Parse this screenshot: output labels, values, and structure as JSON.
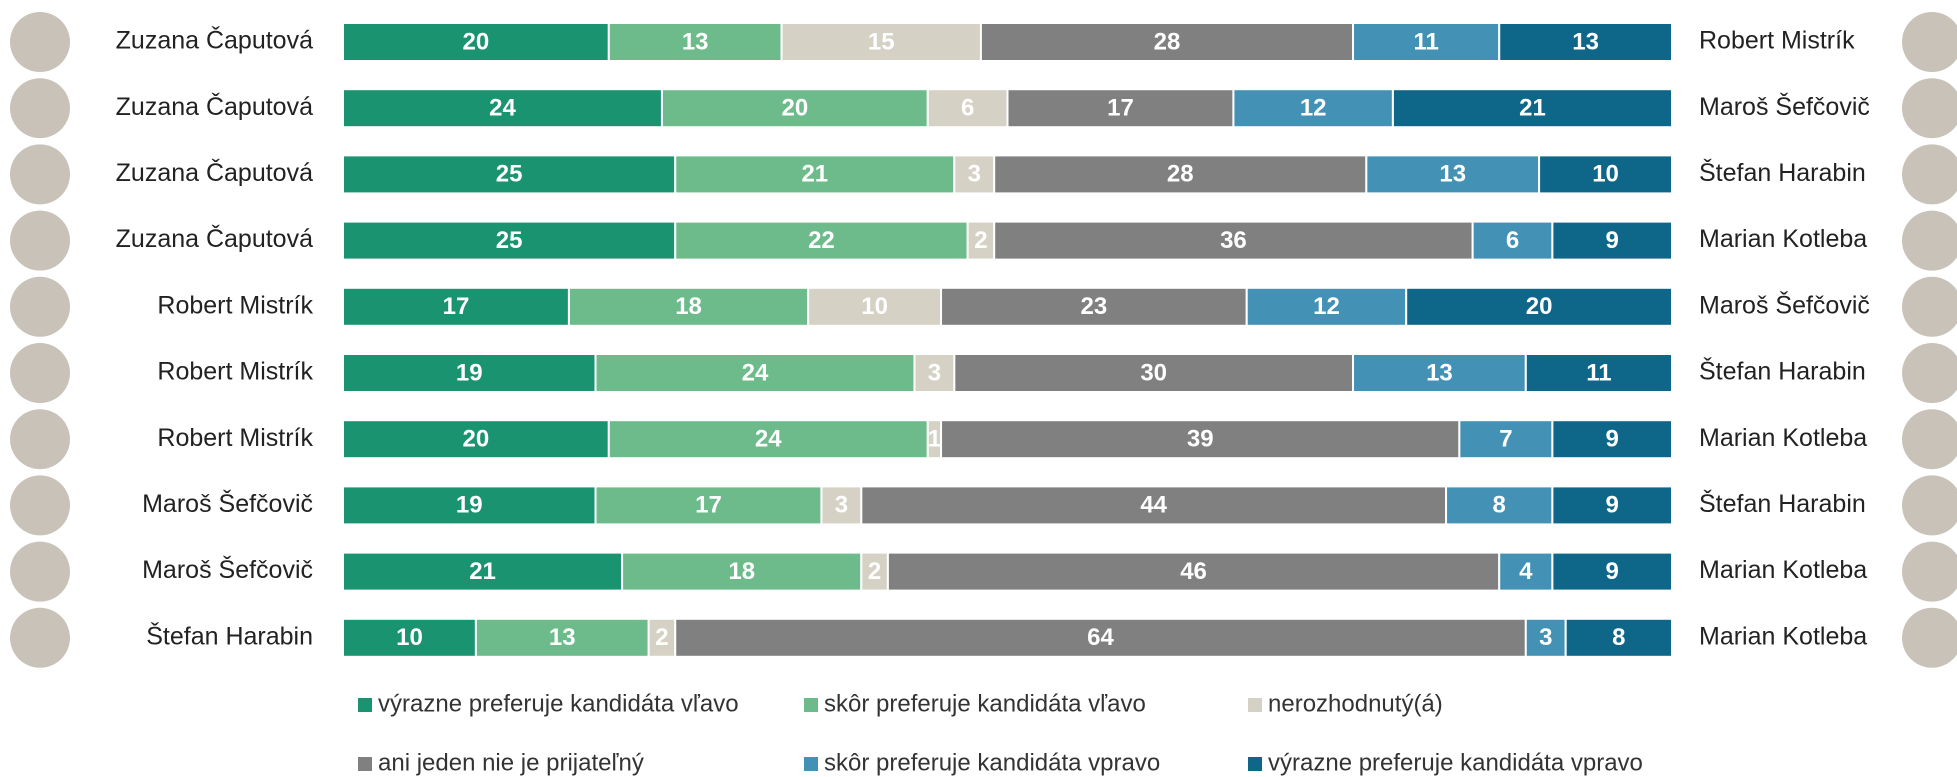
{
  "chart_data": {
    "type": "bar",
    "orientation": "horizontal",
    "stacked": true,
    "left_labels": [
      "Zuzana Čaputová",
      "Zuzana Čaputová",
      "Zuzana Čaputová",
      "Zuzana Čaputová",
      "Robert Mistrík",
      "Robert Mistrík",
      "Robert Mistrík",
      "Maroš Šefčovič",
      "Maroš Šefčovič",
      "Štefan Harabin"
    ],
    "right_labels": [
      "Robert Mistrík",
      "Maroš Šefčovič",
      "Štefan Harabin",
      "Marian Kotleba",
      "Maroš Šefčovič",
      "Štefan Harabin",
      "Marian Kotleba",
      "Štefan Harabin",
      "Marian Kotleba",
      "Marian Kotleba"
    ],
    "series": [
      {
        "name": "výrazne preferuje kandidáta vľavo",
        "color": "#1a9370",
        "values": [
          20,
          24,
          25,
          25,
          17,
          19,
          20,
          19,
          21,
          10
        ]
      },
      {
        "name": "skôr preferuje kandidáta vľavo",
        "color": "#6dbb8a",
        "values": [
          13,
          20,
          21,
          22,
          18,
          24,
          24,
          17,
          18,
          13
        ]
      },
      {
        "name": "nerozhodnutý(á)",
        "color": "#d5d1c5",
        "values": [
          15,
          6,
          3,
          2,
          10,
          3,
          1,
          3,
          2,
          2
        ]
      },
      {
        "name": "ani jeden nie je prijateľný",
        "color": "#808080",
        "values": [
          28,
          17,
          28,
          36,
          23,
          30,
          39,
          44,
          46,
          64
        ]
      },
      {
        "name": "skôr preferuje kandidáta vpravo",
        "color": "#4391b5",
        "values": [
          11,
          12,
          13,
          6,
          12,
          13,
          7,
          8,
          4,
          3
        ]
      },
      {
        "name": "výrazne preferuje kandidáta vpravo",
        "color": "#0e6689",
        "values": [
          13,
          21,
          10,
          9,
          20,
          11,
          9,
          9,
          9,
          8
        ]
      }
    ]
  }
}
